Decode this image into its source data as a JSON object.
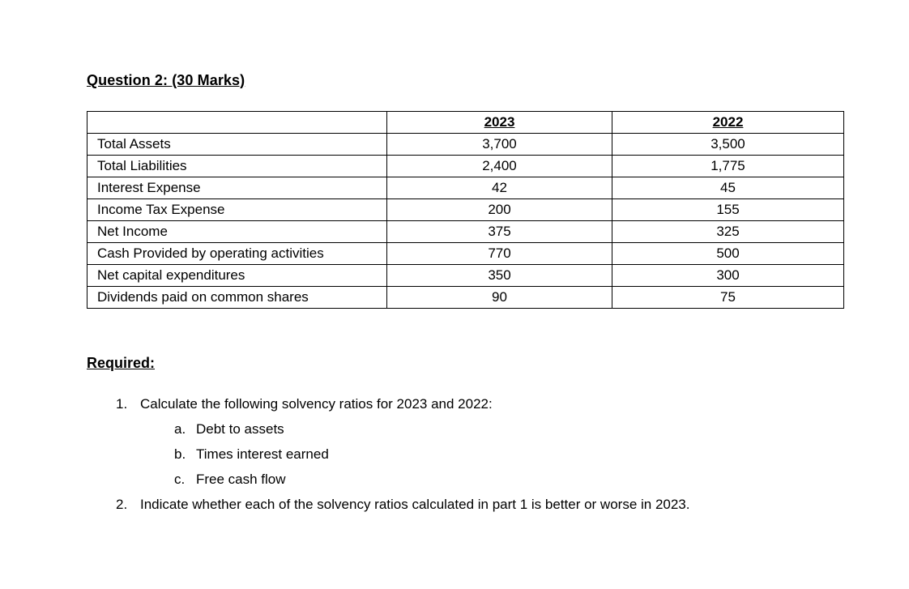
{
  "page": {
    "title": "Question 2: (30 Marks)",
    "required_label": "Required:"
  },
  "table": {
    "columns": [
      "",
      "2023",
      "2022"
    ],
    "rows": [
      {
        "label": "Total Assets",
        "y2023": "3,700",
        "y2022": "3,500"
      },
      {
        "label": "Total Liabilities",
        "y2023": "2,400",
        "y2022": "1,775"
      },
      {
        "label": "Interest Expense",
        "y2023": "42",
        "y2022": "45"
      },
      {
        "label": "Income Tax Expense",
        "y2023": "200",
        "y2022": "155"
      },
      {
        "label": "Net Income",
        "y2023": "375",
        "y2022": "325"
      },
      {
        "label": "Cash Provided by operating activities",
        "y2023": "770",
        "y2022": "500"
      },
      {
        "label": "Net capital expenditures",
        "y2023": "350",
        "y2022": "300"
      },
      {
        "label": "Dividends paid on common shares",
        "y2023": "90",
        "y2022": "75"
      }
    ]
  },
  "tasks": [
    {
      "number": "1.",
      "text": "Calculate the following solvency ratios for 2023 and 2022:",
      "subitems": [
        {
          "letter": "a.",
          "text": "Debt to assets"
        },
        {
          "letter": "b.",
          "text": "Times interest earned"
        },
        {
          "letter": "c.",
          "text": "Free cash flow"
        }
      ]
    },
    {
      "number": "2.",
      "text": "Indicate whether each of the solvency ratios calculated in part 1 is better or worse in 2023."
    }
  ]
}
